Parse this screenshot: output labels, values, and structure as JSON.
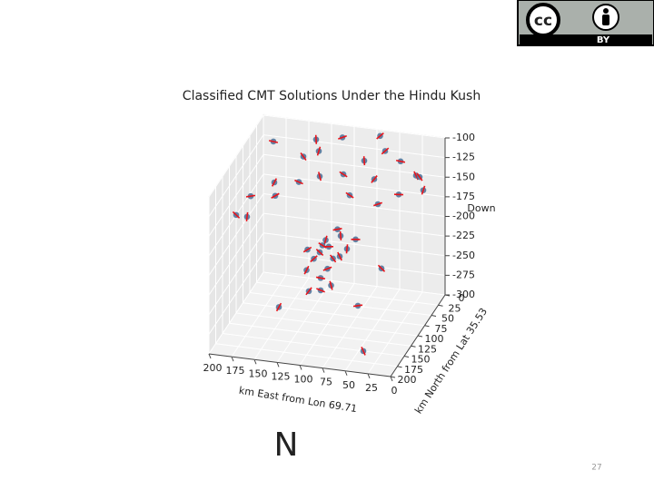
{
  "chart_data": {
    "type": "scatter3d",
    "title": "Classified CMT Solutions Under the Hindu Kush",
    "xlabel": "km East from Lon 69.71",
    "ylabel": "km North from Lat 35.53",
    "zlabel": "Down",
    "xlim": [
      0,
      200
    ],
    "ylim": [
      0,
      200
    ],
    "zlim": [
      -300,
      -100
    ],
    "xticks": [
      0,
      25,
      50,
      75,
      100,
      125,
      150,
      175,
      200
    ],
    "yticks": [
      0,
      25,
      50,
      75,
      100,
      125,
      150,
      175,
      200
    ],
    "zticks": [
      -300,
      -275,
      -250,
      -225,
      -200,
      -175,
      -150,
      -125,
      -100
    ],
    "grid": true,
    "color": "#4a6f96",
    "mechanism_color": "#e8141b",
    "x": [
      95,
      88,
      100,
      92,
      105,
      85,
      110,
      98,
      80,
      115,
      90,
      102,
      75,
      120,
      95,
      85,
      108,
      70,
      150,
      130,
      110,
      100,
      80,
      60,
      40,
      20,
      170,
      190,
      200,
      185,
      160,
      140,
      120,
      60,
      30,
      10,
      0,
      50,
      90,
      130,
      70,
      180,
      45,
      150,
      60,
      40
    ],
    "y": [
      110,
      118,
      105,
      125,
      100,
      100,
      115,
      130,
      120,
      125,
      95,
      120,
      110,
      105,
      140,
      135,
      140,
      95,
      20,
      30,
      10,
      40,
      30,
      20,
      30,
      40,
      60,
      80,
      100,
      110,
      90,
      70,
      60,
      60,
      70,
      60,
      80,
      80,
      50,
      40,
      5,
      30,
      150,
      110,
      120,
      100
    ],
    "z": [
      -195,
      -205,
      -190,
      -215,
      -200,
      -185,
      -210,
      -225,
      -200,
      -220,
      -180,
      -198,
      -195,
      -205,
      -235,
      -230,
      -238,
      -190,
      -135,
      -120,
      -110,
      -140,
      -125,
      -115,
      -120,
      -130,
      -150,
      -160,
      -175,
      -170,
      -150,
      -140,
      -135,
      -130,
      -140,
      -120,
      -125,
      -150,
      -160,
      -100,
      -105,
      -115,
      -300,
      -280,
      -260,
      -220
    ]
  },
  "slide": {
    "marker": "N",
    "page_number": "27",
    "license_logo": "cc",
    "license_label": "BY"
  }
}
